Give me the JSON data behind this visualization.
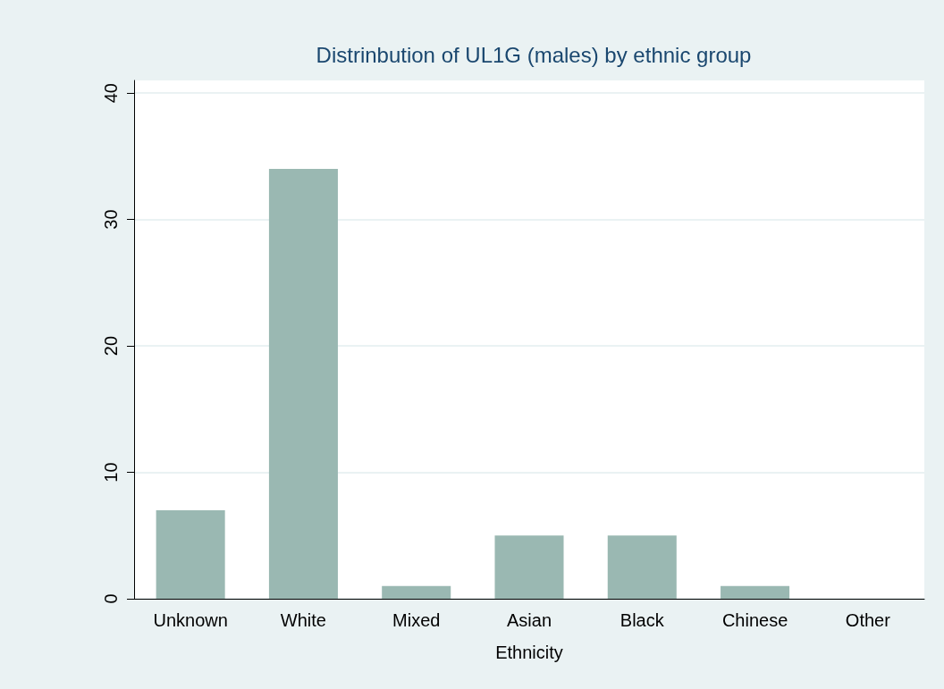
{
  "chart_data": {
    "type": "bar",
    "title": "Distrinbution of UL1G (males) by ethnic group",
    "xlabel": "Ethnicity",
    "categories": [
      "Unknown",
      "White",
      "Mixed",
      "Asian",
      "Black",
      "Chinese",
      "Other"
    ],
    "values": [
      7,
      34,
      1,
      5,
      5,
      1,
      0
    ],
    "color": "#9ab8b2",
    "ylim": [
      0,
      41
    ],
    "yticks": [
      0,
      10,
      20,
      30,
      40
    ],
    "grid": "y"
  }
}
